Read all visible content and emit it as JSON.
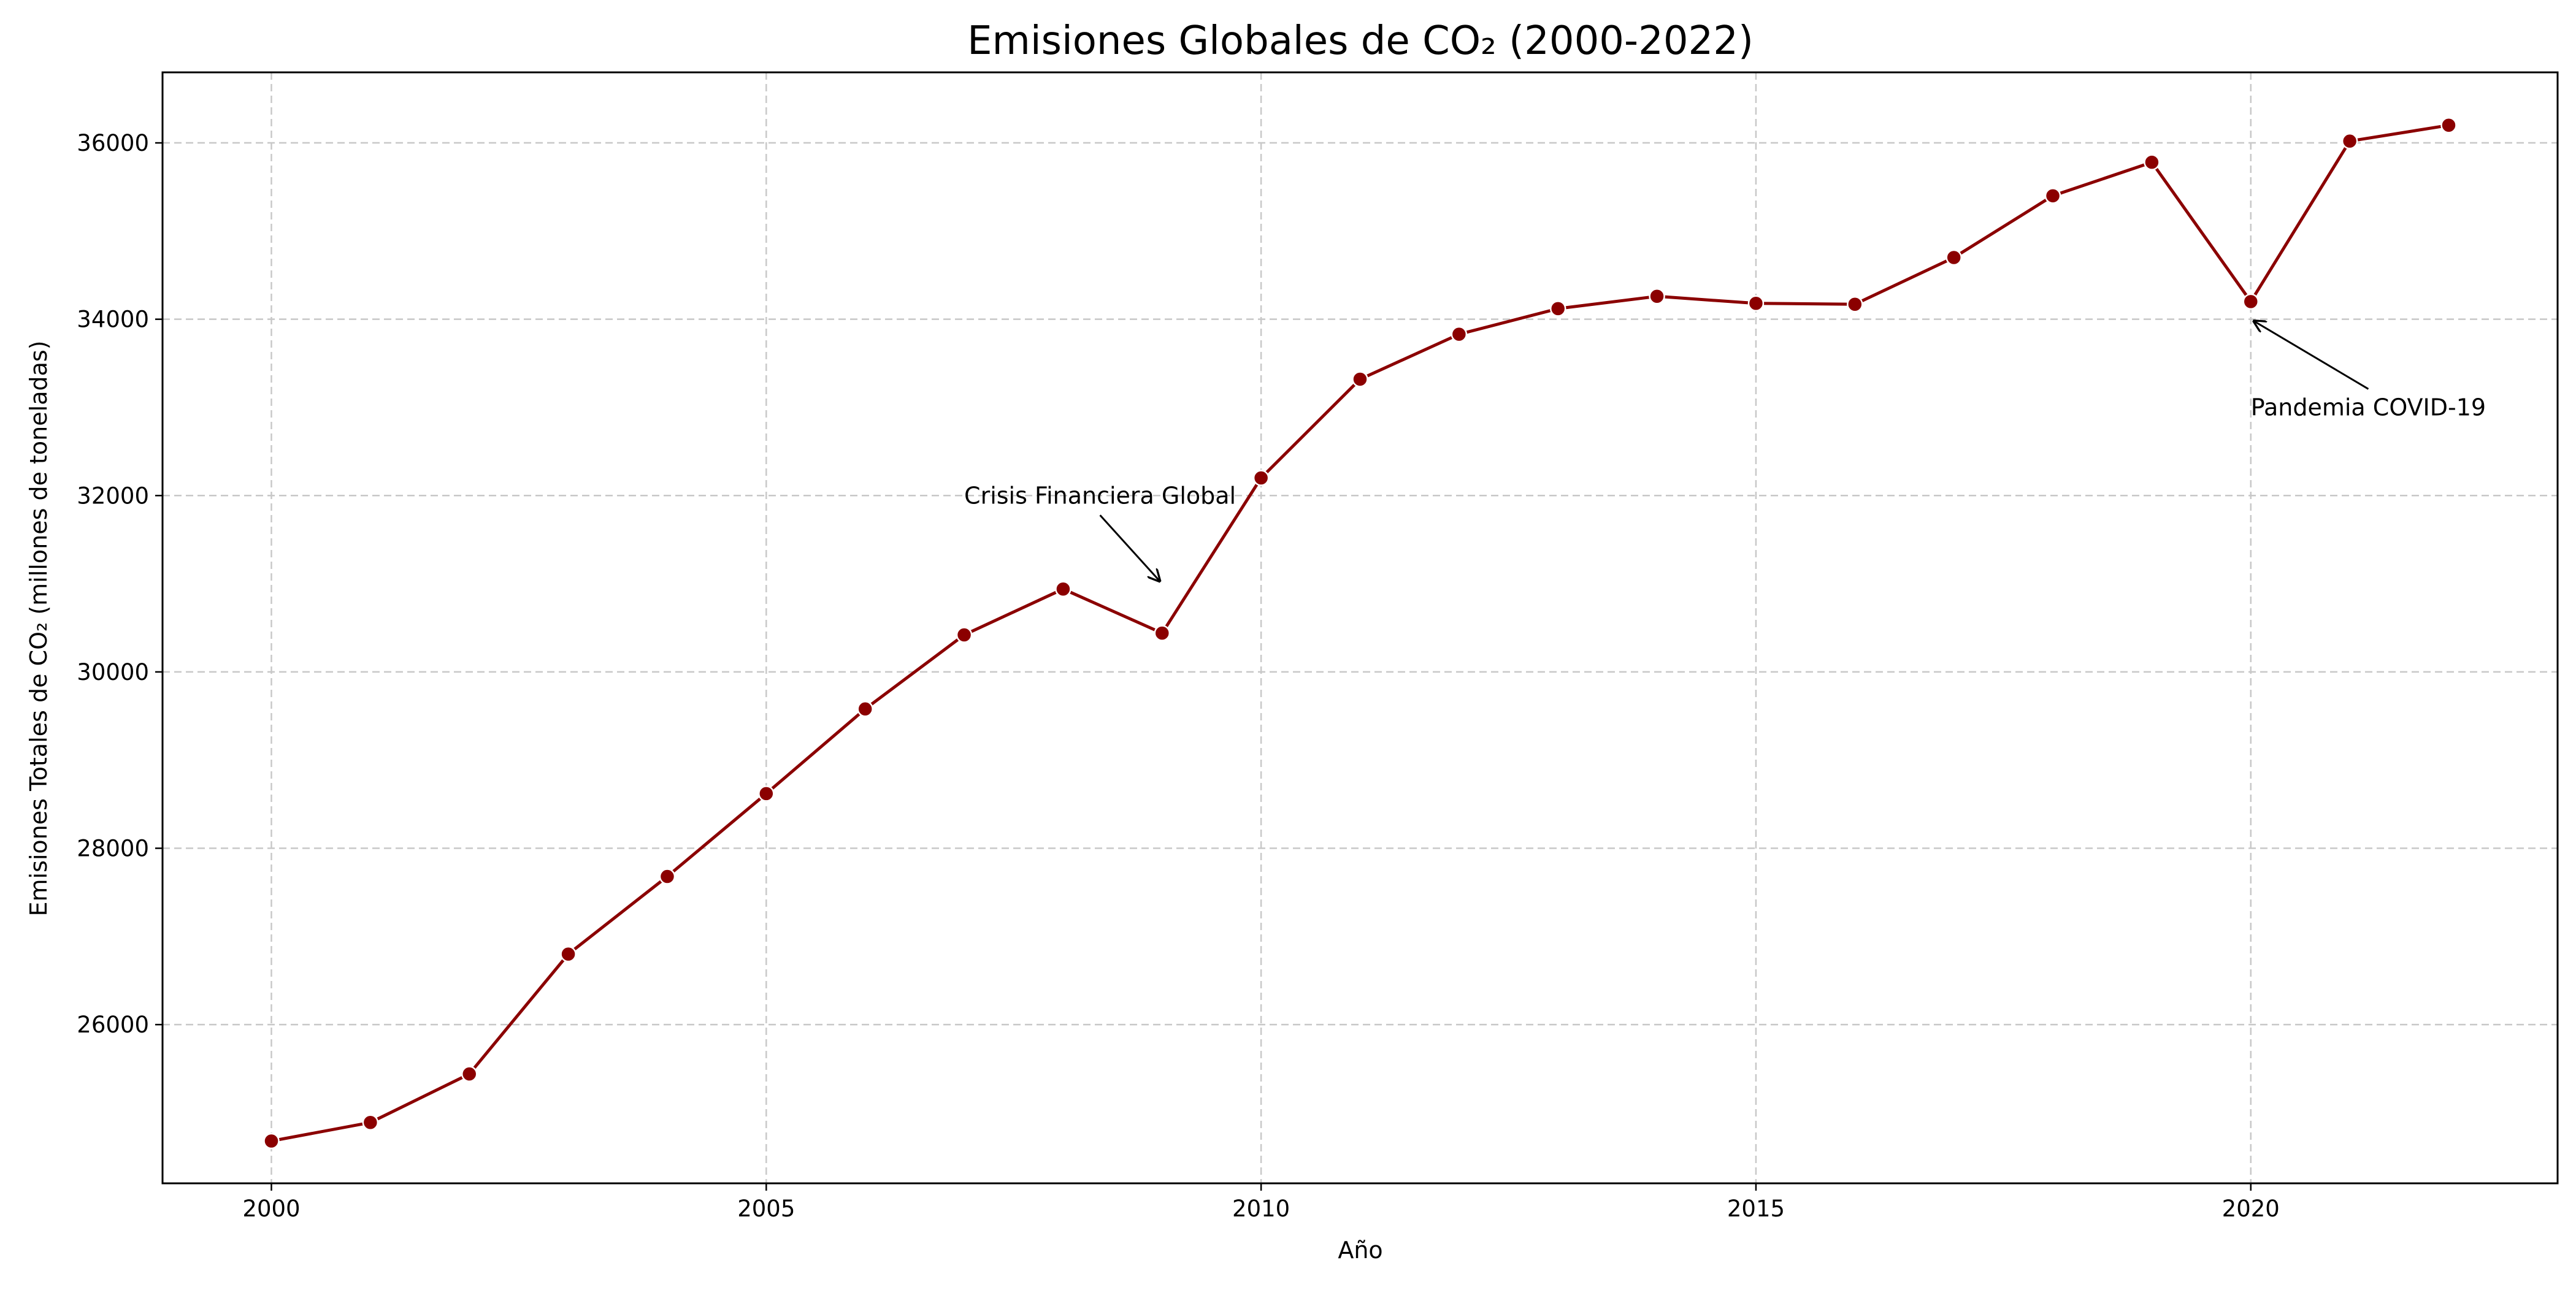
{
  "chart_data": {
    "type": "line",
    "title": "Emisiones Globales de CO₂ (2000-2022)",
    "xlabel": "Año",
    "ylabel": "Emisiones Totales de CO₂ (millones de toneladas)",
    "xlim": [
      1998.9,
      2023.1
    ],
    "ylim": [
      24200,
      36800
    ],
    "x_ticks": [
      2000,
      2005,
      2010,
      2015,
      2020
    ],
    "y_ticks": [
      26000,
      28000,
      30000,
      32000,
      34000,
      36000
    ],
    "grid": true,
    "grid_style": "dashed",
    "x": [
      2000,
      2001,
      2002,
      2003,
      2004,
      2005,
      2006,
      2007,
      2008,
      2009,
      2010,
      2011,
      2012,
      2013,
      2014,
      2015,
      2016,
      2017,
      2018,
      2019,
      2020,
      2021,
      2022
    ],
    "series": [
      {
        "color": "#8b0000",
        "values": [
          24680,
          24890,
          25440,
          26800,
          27680,
          28620,
          29580,
          30420,
          30940,
          30440,
          32200,
          33320,
          33830,
          34120,
          34260,
          34180,
          34170,
          34700,
          35400,
          35780,
          34200,
          36020,
          36200
        ]
      }
    ],
    "annotations": [
      {
        "text": "Crisis Financiera Global",
        "x": 2009,
        "y": 31000,
        "text_x": 2007,
        "text_y": 32000
      },
      {
        "text": "Pandemia COVID-19",
        "x": 2020,
        "y": 34000,
        "text_x": 2020,
        "text_y": 33000
      }
    ]
  }
}
